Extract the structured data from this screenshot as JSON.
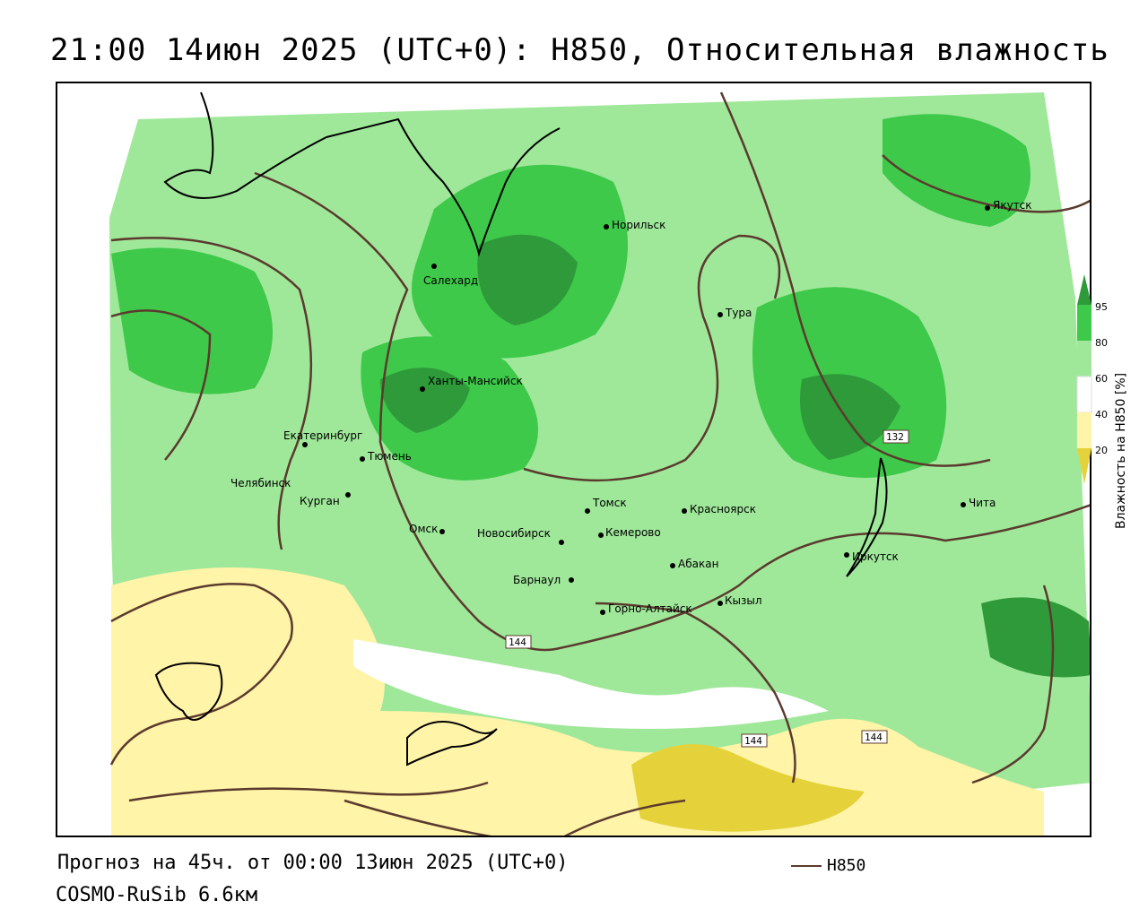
{
  "title": "21:00 14июн 2025 (UTC+0): H850, Относительная влажность",
  "forecast_line": "Прогноз на 45ч. от 00:00 13июн 2025 (UTC+0)",
  "model_line": "COSMO-RuSib 6.6км",
  "line_legend": {
    "label": "H850",
    "color": "#5b3a2e"
  },
  "colorbar": {
    "title": "Влажность на H850 [%]",
    "ticks": [
      "95",
      "80",
      "60",
      "40",
      "20"
    ],
    "bands": [
      {
        "color": "#2e9a3a"
      },
      {
        "color": "#3ec94a"
      },
      {
        "color": "#9fe89a"
      },
      {
        "color": "#ffffff"
      },
      {
        "color": "#fff4a8"
      },
      {
        "color": "#e5d23a"
      }
    ]
  },
  "contour_labels": [
    "132",
    "144",
    "144",
    "144"
  ],
  "cities": [
    {
      "name": "Якутск"
    },
    {
      "name": "Норильск"
    },
    {
      "name": "Салехард"
    },
    {
      "name": "Тура"
    },
    {
      "name": "Ханты-Мансийск"
    },
    {
      "name": "Екатеринбург"
    },
    {
      "name": "Тюмень"
    },
    {
      "name": "Челябинск"
    },
    {
      "name": "Курган"
    },
    {
      "name": "Омск"
    },
    {
      "name": "Томск"
    },
    {
      "name": "Красноярск"
    },
    {
      "name": "Новосибирск"
    },
    {
      "name": "Кемерово"
    },
    {
      "name": "Абакан"
    },
    {
      "name": "Барнаул"
    },
    {
      "name": "Горно-Алтайск"
    },
    {
      "name": "Кызыл"
    },
    {
      "name": "Иркутск"
    },
    {
      "name": "Чита"
    }
  ]
}
